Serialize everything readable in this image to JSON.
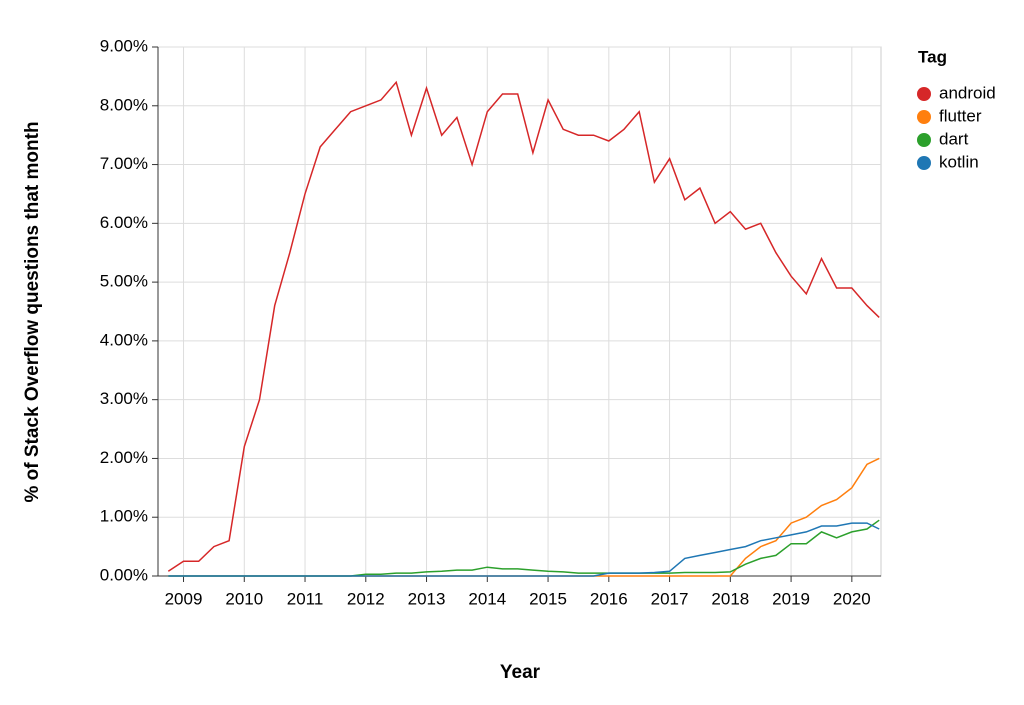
{
  "chart_data": {
    "type": "line",
    "xlabel": "Year",
    "ylabel": "% of Stack Overflow questions that month",
    "legend_title": "Tag",
    "legend": "right",
    "grid": true,
    "xlim": [
      2008.58,
      2020.48
    ],
    "xticks": [
      2009,
      2010,
      2011,
      2012,
      2013,
      2014,
      2015,
      2016,
      2017,
      2018,
      2019,
      2020
    ],
    "ylim": [
      0,
      9
    ],
    "yticks": [
      {
        "value": 0,
        "label": "0.00%"
      },
      {
        "value": 1,
        "label": "1.00%"
      },
      {
        "value": 2,
        "label": "2.00%"
      },
      {
        "value": 3,
        "label": "3.00%"
      },
      {
        "value": 4,
        "label": "4.00%"
      },
      {
        "value": 5,
        "label": "5.00%"
      },
      {
        "value": 6,
        "label": "6.00%"
      },
      {
        "value": 7,
        "label": "7.00%"
      },
      {
        "value": 8,
        "label": "8.00%"
      },
      {
        "value": 9,
        "label": "9.00%"
      }
    ],
    "x": [
      2008.75,
      2009.0,
      2009.25,
      2009.5,
      2009.75,
      2010.0,
      2010.25,
      2010.5,
      2010.75,
      2011.0,
      2011.25,
      2011.5,
      2011.75,
      2012.0,
      2012.25,
      2012.5,
      2012.75,
      2013.0,
      2013.25,
      2013.5,
      2013.75,
      2014.0,
      2014.25,
      2014.5,
      2014.75,
      2015.0,
      2015.25,
      2015.5,
      2015.75,
      2016.0,
      2016.25,
      2016.5,
      2016.75,
      2017.0,
      2017.25,
      2017.5,
      2017.75,
      2018.0,
      2018.25,
      2018.5,
      2018.75,
      2019.0,
      2019.25,
      2019.5,
      2019.75,
      2020.0,
      2020.25,
      2020.45
    ],
    "series": [
      {
        "name": "android",
        "color": "#d62728",
        "values": [
          0.08,
          0.25,
          0.25,
          0.5,
          0.6,
          2.2,
          3.0,
          4.6,
          5.5,
          6.5,
          7.3,
          7.6,
          7.9,
          8.0,
          8.1,
          8.4,
          7.5,
          8.3,
          7.5,
          7.8,
          7.0,
          7.9,
          8.2,
          8.2,
          7.2,
          8.1,
          7.6,
          7.5,
          7.5,
          7.4,
          7.6,
          7.9,
          6.7,
          7.1,
          6.4,
          6.6,
          6.0,
          6.2,
          5.9,
          6.0,
          5.5,
          5.1,
          4.8,
          5.4,
          4.9,
          4.9,
          4.6,
          4.4
        ]
      },
      {
        "name": "flutter",
        "color": "#ff7f0e",
        "values": [
          0,
          0,
          0,
          0,
          0,
          0,
          0,
          0,
          0,
          0,
          0,
          0,
          0,
          0,
          0,
          0,
          0,
          0,
          0,
          0,
          0,
          0,
          0,
          0,
          0,
          0,
          0,
          0,
          0,
          0,
          0,
          0,
          0,
          0,
          0,
          0,
          0,
          0,
          0.3,
          0.5,
          0.6,
          0.9,
          1.0,
          1.2,
          1.3,
          1.5,
          1.9,
          2.0
        ]
      },
      {
        "name": "dart",
        "color": "#2ca02c",
        "values": [
          0,
          0,
          0,
          0,
          0,
          0,
          0,
          0,
          0,
          0,
          0,
          0,
          0,
          0.03,
          0.03,
          0.05,
          0.05,
          0.07,
          0.08,
          0.1,
          0.1,
          0.15,
          0.12,
          0.12,
          0.1,
          0.08,
          0.07,
          0.05,
          0.05,
          0.05,
          0.05,
          0.05,
          0.05,
          0.05,
          0.06,
          0.06,
          0.06,
          0.07,
          0.2,
          0.3,
          0.35,
          0.55,
          0.55,
          0.75,
          0.65,
          0.75,
          0.8,
          0.95
        ]
      },
      {
        "name": "kotlin",
        "color": "#1f77b4",
        "values": [
          0,
          0,
          0,
          0,
          0,
          0,
          0,
          0,
          0,
          0,
          0,
          0,
          0,
          0,
          0,
          0,
          0,
          0,
          0,
          0,
          0,
          0,
          0,
          0,
          0,
          0,
          0,
          0,
          0,
          0.05,
          0.05,
          0.05,
          0.06,
          0.08,
          0.3,
          0.35,
          0.4,
          0.45,
          0.5,
          0.6,
          0.65,
          0.7,
          0.75,
          0.85,
          0.85,
          0.9,
          0.9,
          0.8
        ]
      }
    ]
  }
}
